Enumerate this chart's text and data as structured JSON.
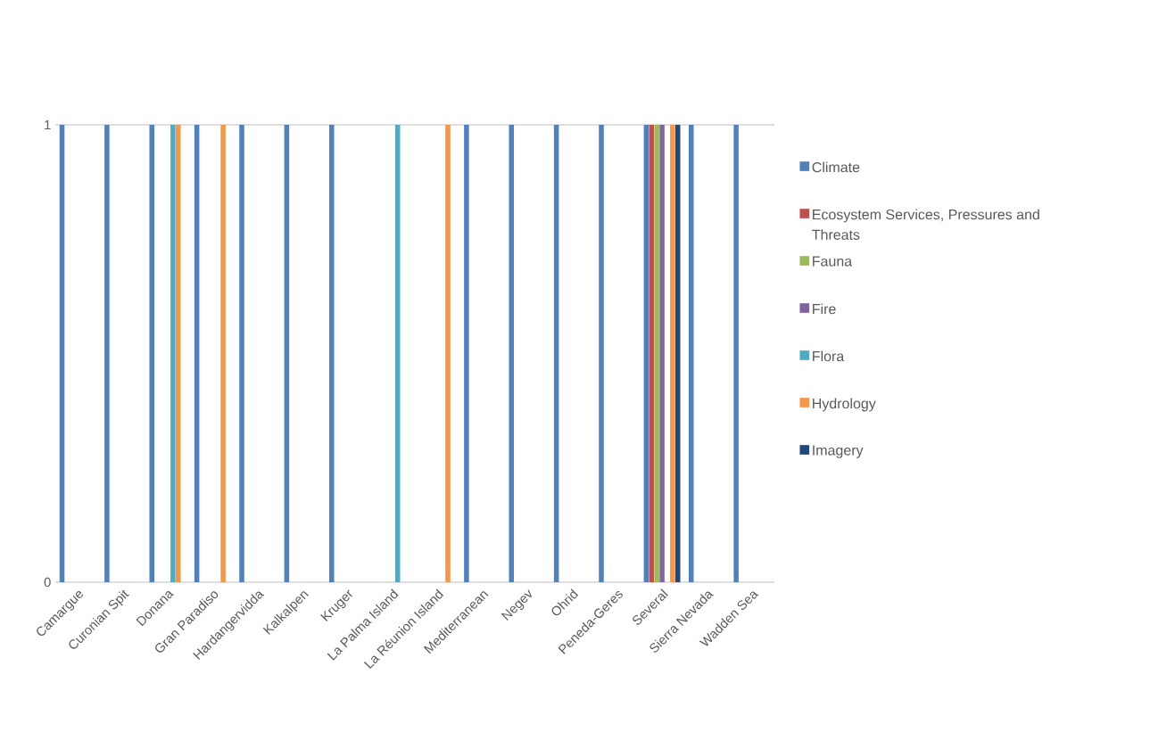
{
  "chart_data": {
    "type": "bar",
    "categories": [
      "Camargue",
      "Curonian Spit",
      "Donana",
      "Gran Paradiso",
      "Hardangervidda",
      "Kalkalpen",
      "Kruger",
      "La Palma Island",
      "La Réunion Island",
      "Mediterranean",
      "Negev",
      "Ohrid",
      "Peneda-Geres",
      "Several",
      "Sierra Nevada",
      "Wadden Sea"
    ],
    "series": [
      {
        "name": "Climate",
        "color": "#4f81bd",
        "values": [
          1,
          1,
          1,
          1,
          1,
          1,
          1,
          null,
          null,
          1,
          1,
          1,
          1,
          1,
          1,
          1
        ]
      },
      {
        "name": "Ecosystem Services, Pressures and Threats",
        "color": "#c0504d",
        "values": [
          null,
          null,
          null,
          null,
          null,
          null,
          null,
          null,
          null,
          null,
          null,
          null,
          null,
          1,
          null,
          null
        ]
      },
      {
        "name": "Fauna",
        "color": "#9bbb59",
        "values": [
          null,
          null,
          null,
          null,
          null,
          null,
          null,
          null,
          null,
          null,
          null,
          null,
          null,
          1,
          null,
          null
        ]
      },
      {
        "name": "Fire",
        "color": "#8064a2",
        "values": [
          null,
          null,
          null,
          null,
          null,
          null,
          null,
          null,
          null,
          null,
          null,
          null,
          null,
          1,
          null,
          null
        ]
      },
      {
        "name": "Flora",
        "color": "#4bacc6",
        "values": [
          null,
          null,
          1,
          null,
          null,
          null,
          null,
          1,
          null,
          null,
          null,
          null,
          null,
          null,
          null,
          null
        ]
      },
      {
        "name": "Hydrology",
        "color": "#f79646",
        "values": [
          null,
          null,
          1,
          1,
          null,
          null,
          null,
          null,
          1,
          null,
          null,
          null,
          null,
          1,
          null,
          null
        ]
      },
      {
        "name": "Imagery",
        "color": "#1f497d",
        "values": [
          null,
          null,
          null,
          null,
          null,
          null,
          null,
          null,
          null,
          null,
          null,
          null,
          null,
          1,
          null,
          null
        ]
      }
    ],
    "ylim": [
      0,
      1
    ],
    "yticks": [
      0,
      1
    ],
    "legend": "right"
  }
}
